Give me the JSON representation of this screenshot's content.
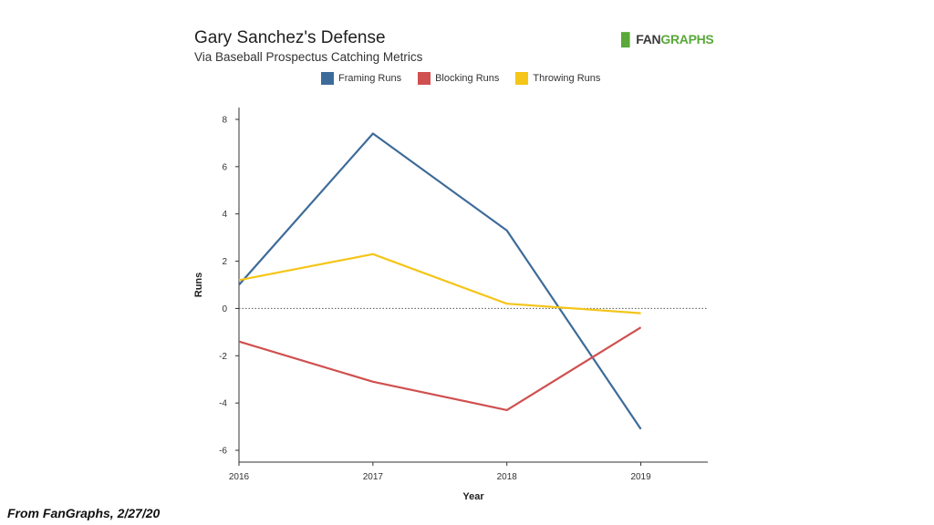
{
  "header": {
    "title": "Gary Sanchez's Defense",
    "subtitle": "Via Baseball Prospectus Catching Metrics",
    "logo_mark": "▐▌",
    "logo_fan": "FAN",
    "logo_graphs": "GRAPHS"
  },
  "footer": {
    "source": "From FanGraphs, 2/27/20"
  },
  "chart_data": {
    "type": "line",
    "title": "Gary Sanchez's Defense",
    "subtitle": "Via Baseball Prospectus Catching Metrics",
    "xlabel": "Year",
    "ylabel": "Runs",
    "x": [
      2016,
      2017,
      2018,
      2019
    ],
    "xlim": [
      2016,
      2019.5
    ],
    "ylim": [
      -6.5,
      8.5
    ],
    "yticks": [
      -6,
      -4,
      -2,
      0,
      2,
      4,
      6,
      8
    ],
    "zero_line": "dotted",
    "grid": false,
    "legend_position": "top",
    "series": [
      {
        "name": "Framing Runs",
        "color": "#3d6b99",
        "values": [
          1.0,
          7.4,
          3.3,
          -5.1
        ]
      },
      {
        "name": "Blocking Runs",
        "color": "#d05050",
        "values": [
          -1.4,
          -3.1,
          -4.3,
          -0.8
        ]
      },
      {
        "name": "Throwing Runs",
        "color": "#f5c518",
        "values": [
          1.2,
          2.3,
          0.2,
          -0.2
        ]
      }
    ]
  }
}
